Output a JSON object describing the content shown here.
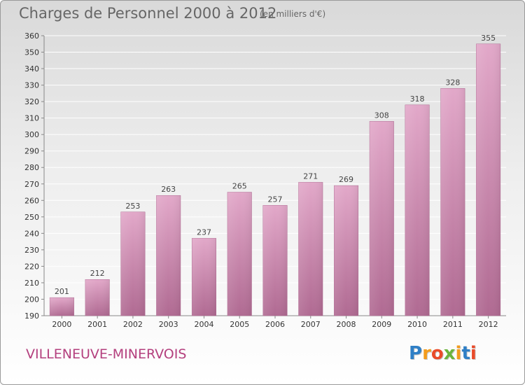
{
  "chart_data": {
    "type": "bar",
    "title": "Charges de Personnel 2000 à 2012",
    "subtitle": "(en milliers d'€)",
    "categories": [
      "2000",
      "2001",
      "2002",
      "2003",
      "2004",
      "2005",
      "2006",
      "2007",
      "2008",
      "2009",
      "2010",
      "2011",
      "2012"
    ],
    "values": [
      201,
      212,
      253,
      263,
      237,
      265,
      257,
      271,
      269,
      308,
      318,
      328,
      355
    ],
    "ylim": [
      190,
      360
    ],
    "yticks": [
      190,
      200,
      210,
      220,
      230,
      240,
      250,
      260,
      270,
      280,
      290,
      300,
      310,
      320,
      330,
      340,
      350,
      360
    ],
    "grid": true,
    "bar_color": "#c9709f"
  },
  "footer": {
    "place": "VILLENEUVE-MINERVOIS",
    "logo_letters": [
      "P",
      "r",
      "o",
      "x",
      "i",
      "t",
      "i"
    ],
    "logo_colors": [
      "#2f7fc6",
      "#f39c1d",
      "#e94b2a",
      "#6ab43c",
      "#f39c1d",
      "#2f7fc6",
      "#e94b2a"
    ]
  }
}
